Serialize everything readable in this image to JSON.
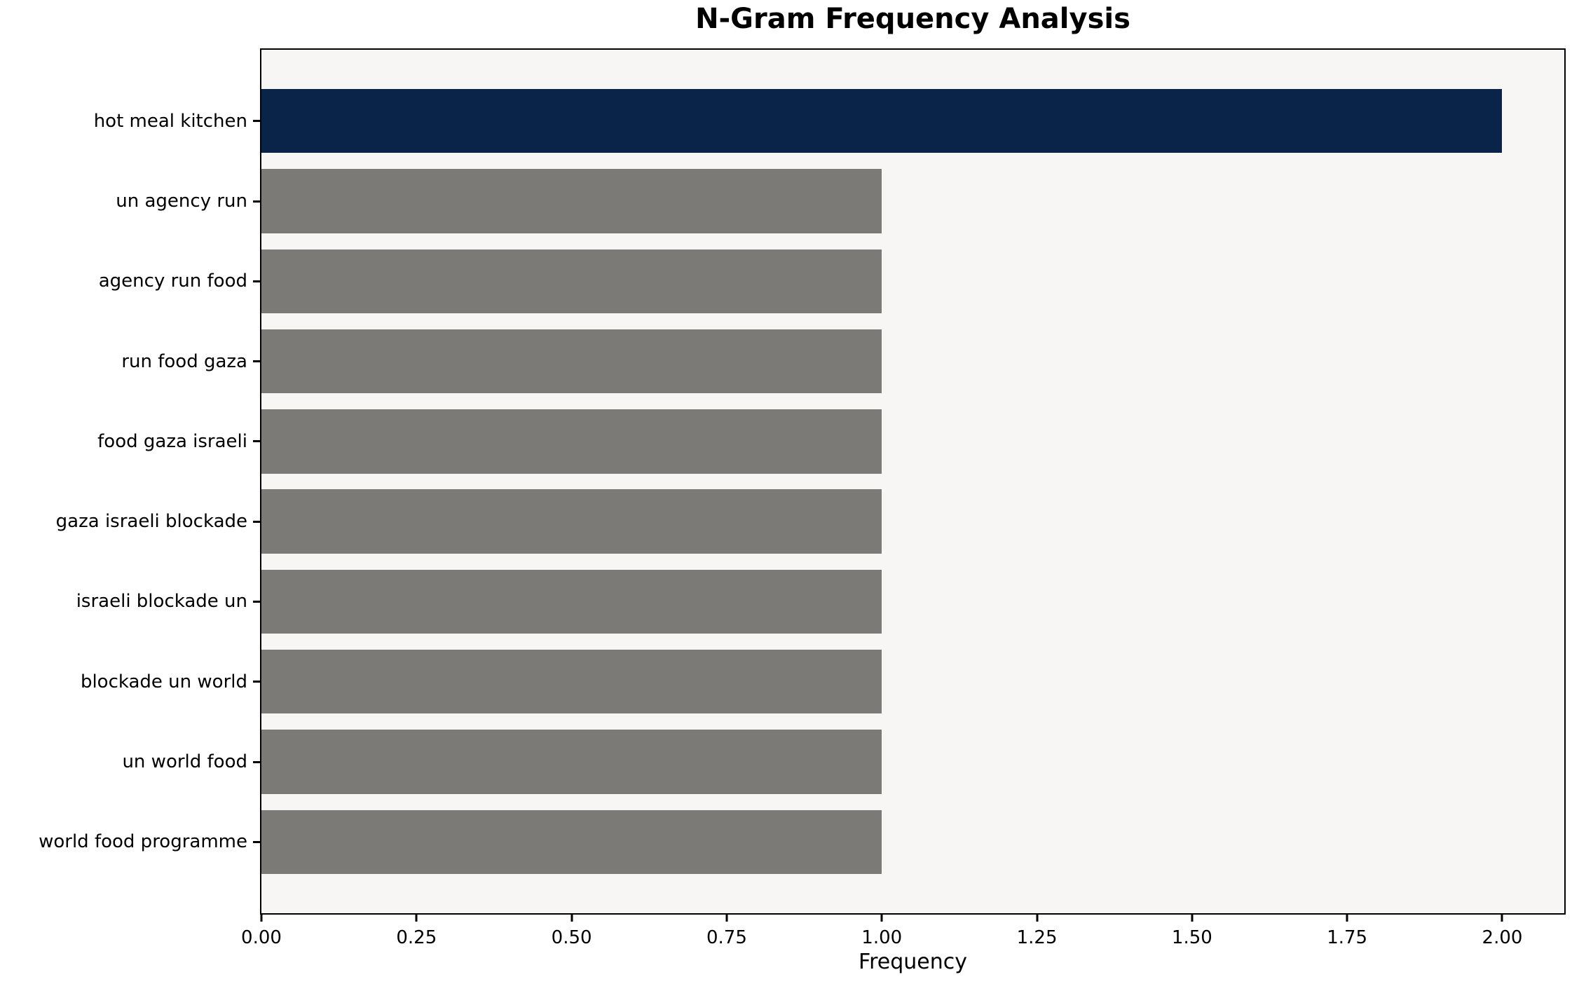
{
  "chart_data": {
    "type": "bar",
    "orientation": "horizontal",
    "title": "N-Gram Frequency Analysis",
    "xlabel": "Frequency",
    "ylabel": "",
    "categories": [
      "hot meal kitchen",
      "un agency run",
      "agency run food",
      "run food gaza",
      "food gaza israeli",
      "gaza israeli blockade",
      "israeli blockade un",
      "blockade un world",
      "un world food",
      "world food programme"
    ],
    "values": [
      2,
      1,
      1,
      1,
      1,
      1,
      1,
      1,
      1,
      1
    ],
    "bar_colors": [
      "#0a2348",
      "#7b7a77",
      "#7b7a77",
      "#7b7a77",
      "#7b7a77",
      "#7b7a77",
      "#7b7a77",
      "#7b7a77",
      "#7b7a77",
      "#7b7a77"
    ],
    "highlight_color": "#0a2348",
    "default_bar_color": "#7b7a77",
    "xlim": [
      0,
      2.1
    ],
    "xticks": [
      0,
      0.25,
      0.5,
      0.75,
      1.0,
      1.25,
      1.5,
      1.75,
      2.0
    ],
    "xtick_labels": [
      "0.00",
      "0.25",
      "0.50",
      "0.75",
      "1.00",
      "1.25",
      "1.50",
      "1.75",
      "2.00"
    ],
    "grid": false,
    "legend": null,
    "plot_background": "#f7f6f4",
    "figure_background": "#ffffff",
    "frame_color": "#000000"
  }
}
